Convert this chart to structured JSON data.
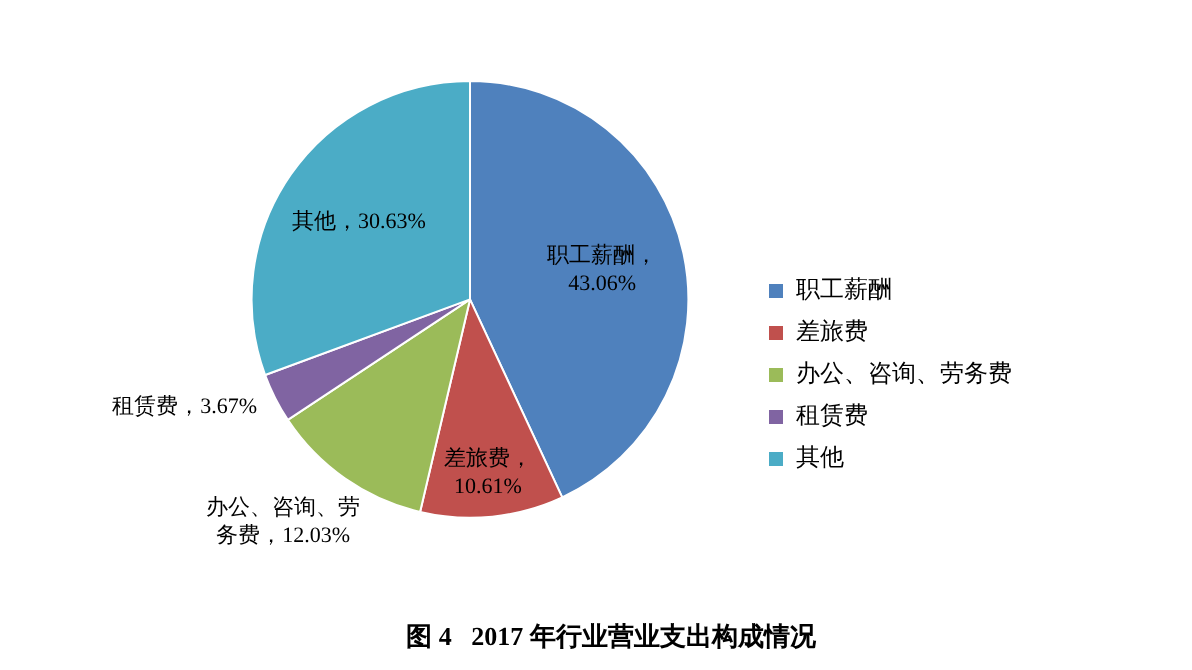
{
  "chart_data": {
    "type": "pie",
    "title": "图 4   2017 年行业营业支出构成情况",
    "categories": [
      "职工薪酬",
      "差旅费",
      "办公、咨询、劳务费",
      "租赁费",
      "其他"
    ],
    "values": [
      43.06,
      10.61,
      12.03,
      3.67,
      30.63
    ],
    "colors": [
      "#4f81bd",
      "#c0504d",
      "#9bbb59",
      "#8064a2",
      "#4bacc6"
    ],
    "value_labels": [
      "职工薪酬，43.06%",
      "差旅费，10.61%",
      "办公、咨询、劳务费，12.03%",
      "租赁费，3.67%",
      "其他，30.63%"
    ],
    "legend": "right"
  }
}
